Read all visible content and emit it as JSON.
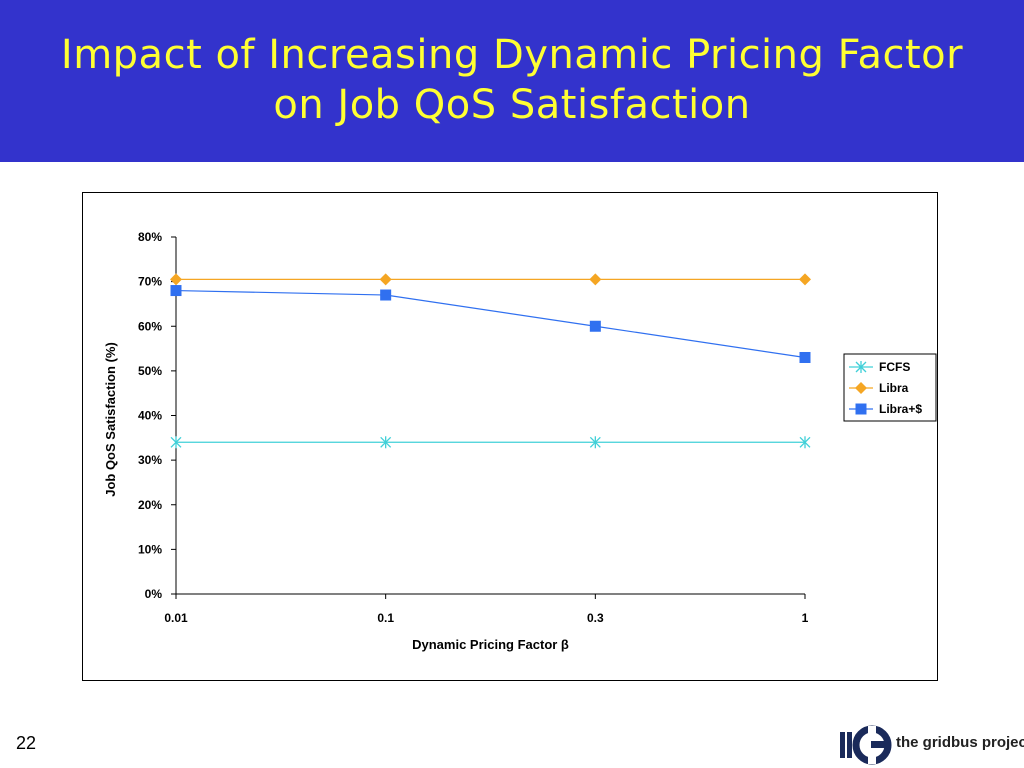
{
  "slide": {
    "title_line1": "Impact of Increasing Dynamic Pricing Factor",
    "title_line2": "on Job QoS Satisfaction",
    "page_number": "22",
    "logo_text": "the gridbus project",
    "title_bg_color": "#3333cc",
    "title_text_color": "#ffff33"
  },
  "chart_data": {
    "type": "line",
    "title": "",
    "xlabel": "Dynamic Pricing Factor β",
    "ylabel": "Job QoS Satisfaction (%)",
    "categories": [
      "0.01",
      "0.1",
      "0.3",
      "1"
    ],
    "ylim": [
      0,
      80
    ],
    "yticks": [
      "0%",
      "10%",
      "20%",
      "30%",
      "40%",
      "50%",
      "60%",
      "70%",
      "80%"
    ],
    "grid": false,
    "legend_position": "right",
    "series": [
      {
        "name": "FCFS",
        "values": [
          34,
          34,
          34,
          34
        ],
        "color": "#40d0d8",
        "marker": "asterisk"
      },
      {
        "name": "Libra",
        "values": [
          70.5,
          70.5,
          70.5,
          70.5
        ],
        "color": "#f5a623",
        "marker": "diamond"
      },
      {
        "name": "Libra+$",
        "values": [
          68,
          67,
          60,
          53
        ],
        "color": "#3070f0",
        "marker": "square"
      }
    ]
  }
}
